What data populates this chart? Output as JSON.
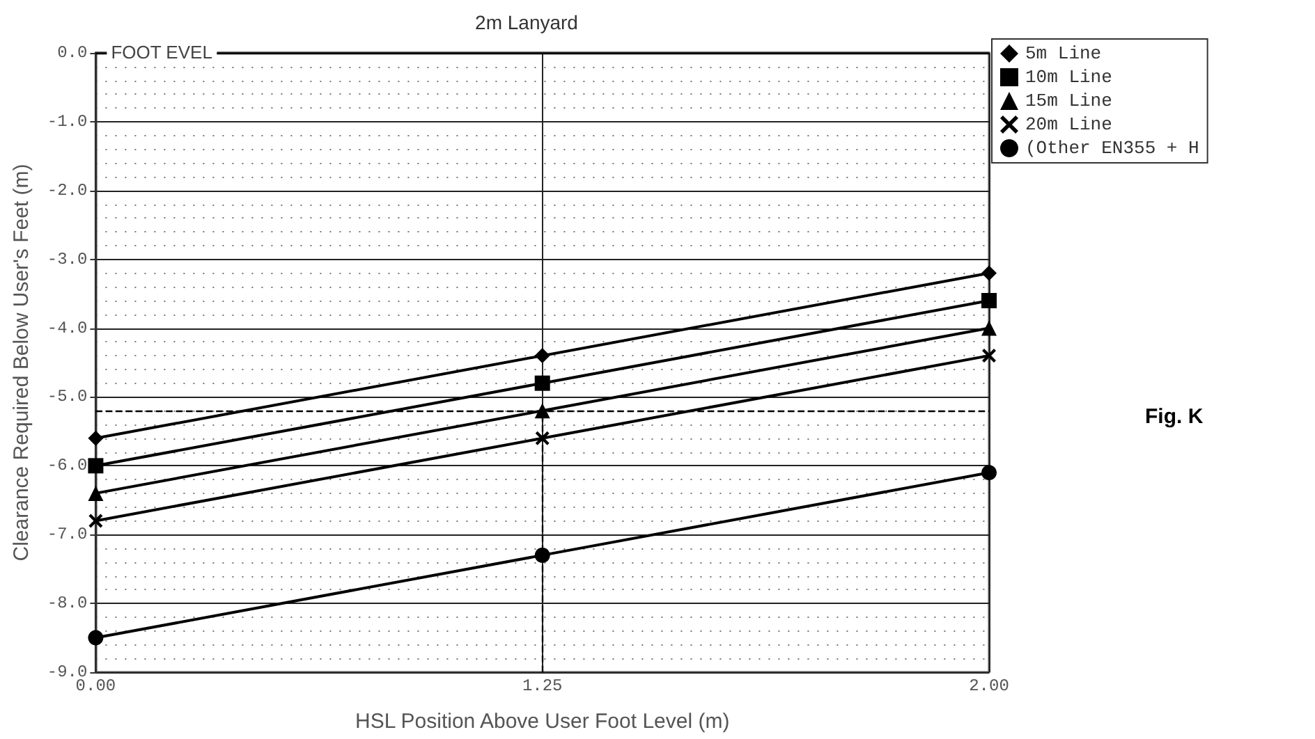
{
  "chart_data": {
    "type": "line",
    "title": "2m Lanyard",
    "xlabel": "HSL Position Above User Foot Level (m)",
    "ylabel": "Clearance Required Below User's Feet (m)",
    "categories": [
      "0.00",
      "1.25",
      "2.00"
    ],
    "series": [
      {
        "name": "5m Line",
        "color": "#000000",
        "marker": "diamond",
        "values": [
          -5.6,
          -4.4,
          -3.2
        ]
      },
      {
        "name": "10m Line",
        "color": "#000000",
        "marker": "square",
        "values": [
          -6.0,
          -4.8,
          -3.6
        ]
      },
      {
        "name": "15m Line",
        "color": "#000000",
        "marker": "triangle",
        "values": [
          -6.4,
          -5.2,
          -4.0
        ]
      },
      {
        "name": "20m Line",
        "color": "#000000",
        "marker": "cross",
        "values": [
          -6.8,
          -5.6,
          -4.4
        ]
      },
      {
        "name": "(Other EN355 + H",
        "color": "#000000",
        "marker": "circle",
        "values": [
          -8.5,
          -7.3,
          -6.1
        ]
      }
    ],
    "ylim": [
      -9,
      0
    ],
    "yticks": [
      {
        "value": -9,
        "label": "-9.0"
      },
      {
        "value": -8,
        "label": "-8.0"
      },
      {
        "value": -7,
        "label": "-7.0"
      },
      {
        "value": -6,
        "label": "-6.0"
      },
      {
        "value": -5,
        "label": "-5.0"
      },
      {
        "value": -4,
        "label": "-4.0"
      },
      {
        "value": -3,
        "label": "-3.0"
      },
      {
        "value": -2,
        "label": "-2.0"
      },
      {
        "value": -1,
        "label": "-1.0"
      },
      {
        "value": 0,
        "label": "0.0"
      }
    ],
    "ref_lines": [
      {
        "axis": "y",
        "value": 0,
        "label": "FOOT EVEL",
        "line_style": "solid",
        "color": "#000000"
      },
      {
        "axis": "y",
        "value": -5.2,
        "line_style": "dashed",
        "color": "#000000"
      },
      {
        "axis": "x",
        "value": "1.25",
        "line_style": "dashed",
        "color": "#000000"
      }
    ],
    "annotations": [
      "Fig. K"
    ],
    "grid": true,
    "legend": "top right",
    "line_style": "solid"
  }
}
